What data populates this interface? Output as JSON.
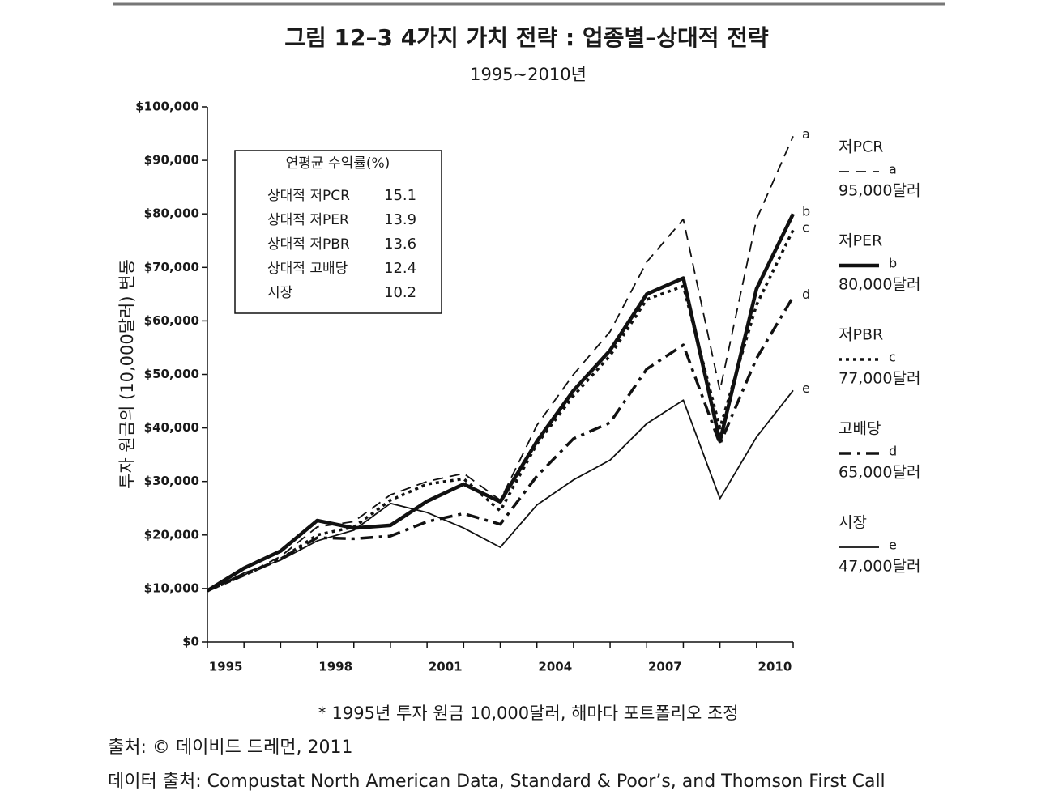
{
  "chart_data": {
    "type": "line",
    "title": "그림 12–3  4가지 가치 전략 : 업종별–상대적 전략",
    "subtitle": "1995~2010년",
    "y_label": "투자 원금의 (10,000달러) 변동",
    "categories": [
      "1995",
      null,
      null,
      "1998",
      null,
      null,
      "2001",
      null,
      null,
      "2004",
      null,
      null,
      "2007",
      null,
      null,
      "2010",
      null
    ],
    "ylim": [
      0,
      100000
    ],
    "yticks": [
      {
        "value": 0,
        "label": "$0"
      },
      {
        "value": 10000,
        "label": "$10,000"
      },
      {
        "value": 20000,
        "label": "$20,000"
      },
      {
        "value": 30000,
        "label": "$30,000"
      },
      {
        "value": 40000,
        "label": "$40,000"
      },
      {
        "value": 50000,
        "label": "$50,000"
      },
      {
        "value": 60000,
        "label": "$60,000"
      },
      {
        "value": 70000,
        "label": "$70,000"
      },
      {
        "value": 80000,
        "label": "$80,000"
      },
      {
        "value": 90000,
        "label": "$90,000"
      },
      {
        "value": 100000,
        "label": "$100,000"
      }
    ],
    "series": [
      {
        "name": "저PCR",
        "letter": "a",
        "end_label": "95,000달러",
        "color": "#111111",
        "style": "dashed",
        "values": [
          9600,
          12500,
          16000,
          21500,
          22500,
          27500,
          30000,
          31500,
          26500,
          40500,
          50000,
          58000,
          71000,
          79000,
          47000,
          79000,
          94500
        ]
      },
      {
        "name": "저PER",
        "letter": "b",
        "end_label": "80,000달러",
        "color": "#111111",
        "style": "thick",
        "values": [
          9600,
          13800,
          17000,
          22700,
          21300,
          21800,
          26300,
          29500,
          26200,
          37500,
          47000,
          54500,
          65000,
          68000,
          37500,
          66000,
          80000
        ]
      },
      {
        "name": "저PBR",
        "letter": "c",
        "end_label": "77,000달러",
        "color": "#111111",
        "style": "dotted",
        "values": [
          9600,
          12500,
          15500,
          20000,
          21500,
          26500,
          29500,
          30500,
          24500,
          37000,
          46000,
          53500,
          64000,
          66500,
          40000,
          63000,
          77000
        ]
      },
      {
        "name": "고배당",
        "letter": "d",
        "end_label": "65,000달러",
        "color": "#111111",
        "style": "dashdot",
        "values": [
          9600,
          12500,
          15500,
          19500,
          19300,
          19800,
          22500,
          24000,
          22000,
          31000,
          38000,
          41000,
          51000,
          55500,
          37000,
          53000,
          64500
        ]
      },
      {
        "name": "시장",
        "letter": "e",
        "end_label": "47,000달러",
        "color": "#111111",
        "style": "solid",
        "values": [
          9500,
          12900,
          15300,
          18900,
          20900,
          25900,
          24200,
          21300,
          17700,
          25600,
          30300,
          34000,
          40800,
          45200,
          26800,
          38300,
          47000
        ]
      }
    ],
    "inset_table": {
      "title": "연평균 수익률(%)",
      "rows": [
        {
          "label": "상대적 저PCR",
          "value": 15.1
        },
        {
          "label": "상대적 저PER",
          "value": 13.9
        },
        {
          "label": "상대적 저PBR",
          "value": 13.6
        },
        {
          "label": "상대적 고배당",
          "value": 12.4
        },
        {
          "label": "시장",
          "value": 10.2
        }
      ]
    },
    "footnote": "* 1995년 투자 원금 10,000달러, 해마다 포트폴리오 조정",
    "source": "출처: © 데이비드 드레먼, 2011",
    "data_source": "데이터 출처: Compustat North American Data, Standard & Poor’s, and Thomson First Call"
  }
}
